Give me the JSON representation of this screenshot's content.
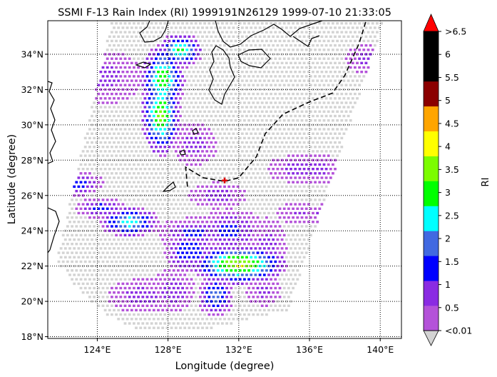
{
  "chart_data": {
    "type": "heatmap",
    "title": "SSMI F-13 Rain Index (RI) 1999191N26129 1999-07-10 21:33:05",
    "xlabel": "Longitude (degree)",
    "ylabel": "Latitude (degree)",
    "xlim": [
      121.2,
      141.2
    ],
    "ylim": [
      17.9,
      35.9
    ],
    "grid": true,
    "x_ticks": [
      {
        "value": 124,
        "label": "124°E"
      },
      {
        "value": 128,
        "label": "128°E"
      },
      {
        "value": 132,
        "label": "132°E"
      },
      {
        "value": 136,
        "label": "136°E"
      },
      {
        "value": 140,
        "label": "140°E"
      }
    ],
    "y_ticks": [
      {
        "value": 18,
        "label": "18°N"
      },
      {
        "value": 20,
        "label": "20°N"
      },
      {
        "value": 22,
        "label": "22°N"
      },
      {
        "value": 24,
        "label": "24°N"
      },
      {
        "value": 26,
        "label": "26°N"
      },
      {
        "value": 28,
        "label": "28°N"
      },
      {
        "value": 30,
        "label": "30°N"
      },
      {
        "value": 32,
        "label": "32°N"
      },
      {
        "value": 34,
        "label": "34°N"
      }
    ],
    "colorbar": {
      "label": "RI",
      "colors": [
        "#d3d3d3",
        "#b452d9",
        "#8a2be2",
        "#0000ff",
        "#4169e1",
        "#00ffff",
        "#00ff00",
        "#7cfc00",
        "#ffff00",
        "#ffa500",
        "#8b0000",
        "#000000",
        "#000000",
        "#ff0000"
      ],
      "tick_labels": [
        "<0.01",
        "0.5",
        "1",
        "1.5",
        "2",
        "2.5",
        "3",
        "3.5",
        "4",
        "4.5",
        "5",
        "5.5",
        "6",
        ">6.5"
      ]
    },
    "swath": {
      "corners": [
        [
          124.8,
          35.8
        ],
        [
          140.2,
          35.8
        ],
        [
          134.8,
          19.5
        ],
        [
          121.7,
          22.3
        ]
      ],
      "bottom_arc_lat": 18.3
    },
    "track": [
      [
        129.1,
        26.5
      ],
      [
        129.0,
        27.6
      ],
      [
        130.0,
        27.0
      ],
      [
        131.2,
        26.8
      ],
      [
        132.0,
        27.0
      ],
      [
        133.0,
        28.2
      ],
      [
        133.5,
        29.5
      ],
      [
        134.5,
        30.6
      ],
      [
        136.0,
        31.3
      ],
      [
        137.3,
        31.8
      ],
      [
        138.0,
        32.8
      ],
      [
        138.8,
        34.6
      ],
      [
        139.2,
        35.9
      ]
    ],
    "storm_center": [
      131.2,
      26.85
    ],
    "rain_cells": [
      {
        "lon": 132.0,
        "lat": 22.1,
        "rlon": 2.2,
        "rlat": 0.9,
        "peak": 3.6
      },
      {
        "lon": 127.6,
        "lat": 30.6,
        "rlon": 0.9,
        "rlat": 1.9,
        "peak": 3.2
      },
      {
        "lon": 127.7,
        "lat": 32.6,
        "rlon": 1.0,
        "rlat": 1.6,
        "peak": 3.0
      },
      {
        "lon": 128.7,
        "lat": 34.2,
        "rlon": 1.0,
        "rlat": 0.8,
        "peak": 2.7
      },
      {
        "lon": 125.8,
        "lat": 24.5,
        "rlon": 1.4,
        "rlat": 0.7,
        "peak": 2.4
      },
      {
        "lon": 122.6,
        "lat": 26.7,
        "rlon": 1.4,
        "rlat": 0.6,
        "peak": 1.5
      },
      {
        "lon": 130.7,
        "lat": 20.3,
        "rlon": 0.8,
        "rlat": 1.0,
        "peak": 1.9
      },
      {
        "lon": 129.4,
        "lat": 23.9,
        "rlon": 1.6,
        "rlat": 0.7,
        "peak": 1.2
      },
      {
        "lon": 124.2,
        "lat": 25.3,
        "rlon": 1.2,
        "rlat": 0.5,
        "peak": 1.3
      },
      {
        "lon": 131.5,
        "lat": 24.0,
        "rlon": 1.6,
        "rlat": 1.0,
        "peak": 1.2
      },
      {
        "lon": 129.2,
        "lat": 22.8,
        "rlon": 1.2,
        "rlat": 1.0,
        "peak": 1.5
      },
      {
        "lon": 135.9,
        "lat": 27.5,
        "rlon": 1.9,
        "rlat": 0.7,
        "peak": 0.9
      },
      {
        "lon": 137.1,
        "lat": 24.9,
        "rlon": 1.1,
        "rlat": 0.5,
        "peak": 0.9
      },
      {
        "lon": 139.2,
        "lat": 33.7,
        "rlon": 0.9,
        "rlat": 0.7,
        "peak": 0.8
      },
      {
        "lon": 126.5,
        "lat": 20.3,
        "rlon": 1.5,
        "rlat": 0.8,
        "peak": 0.8
      },
      {
        "lon": 128.3,
        "lat": 20.6,
        "rlon": 1.0,
        "rlat": 1.0,
        "peak": 0.9
      },
      {
        "lon": 124.5,
        "lat": 32.7,
        "rlon": 1.6,
        "rlat": 1.2,
        "peak": 0.7
      },
      {
        "lon": 129.5,
        "lat": 28.9,
        "rlon": 1.0,
        "rlat": 1.0,
        "peak": 0.8
      },
      {
        "lon": 130.8,
        "lat": 26.0,
        "rlon": 1.3,
        "rlat": 0.6,
        "peak": 0.8
      },
      {
        "lon": 133.6,
        "lat": 23.0,
        "rlon": 0.9,
        "rlat": 1.4,
        "peak": 0.8
      },
      {
        "lon": 135.4,
        "lat": 25.0,
        "rlon": 1.0,
        "rlat": 0.5,
        "peak": 0.6
      },
      {
        "lon": 133.4,
        "lat": 20.6,
        "rlon": 0.8,
        "rlat": 0.7,
        "peak": 0.7
      }
    ]
  }
}
